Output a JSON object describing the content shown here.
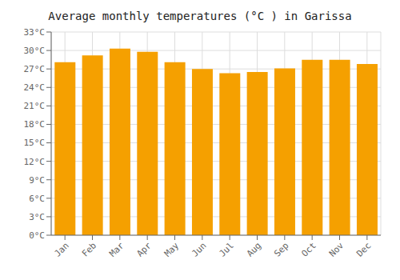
{
  "chart_data": {
    "type": "bar",
    "title": "Average monthly temperatures (°C ) in Garissa",
    "categories": [
      "Jan",
      "Feb",
      "Mar",
      "Apr",
      "May",
      "Jun",
      "Jul",
      "Aug",
      "Sep",
      "Oct",
      "Nov",
      "Dec"
    ],
    "values": [
      28.1,
      29.2,
      30.3,
      29.8,
      28.1,
      27.0,
      26.3,
      26.5,
      27.1,
      28.5,
      28.5,
      27.8
    ],
    "color": "#F5A000",
    "ylim": [
      0,
      33
    ],
    "yticks": [
      {
        "value": 0,
        "label": "0°C"
      },
      {
        "value": 3,
        "label": "3°C"
      },
      {
        "value": 6,
        "label": "6°C"
      },
      {
        "value": 9,
        "label": "9°C"
      },
      {
        "value": 12,
        "label": "12°C"
      },
      {
        "value": 15,
        "label": "15°C"
      },
      {
        "value": 18,
        "label": "18°C"
      },
      {
        "value": 21,
        "label": "21°C"
      },
      {
        "value": 24,
        "label": "24°C"
      },
      {
        "value": 27,
        "label": "27°C"
      },
      {
        "value": 30,
        "label": "30°C"
      },
      {
        "value": 33,
        "label": "33°C"
      }
    ],
    "grid": true
  }
}
